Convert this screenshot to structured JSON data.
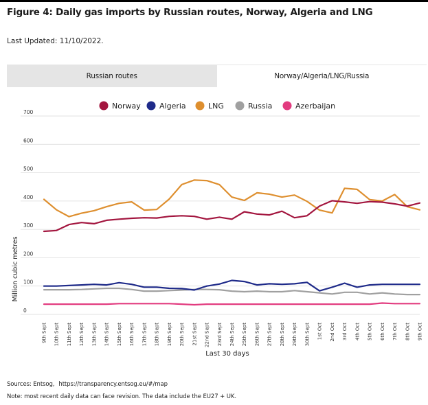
{
  "title": "Figure 4: Daily gas imports by Russian routes, Norway, Algeria and LNG",
  "last_updated": "Last Updated: 11/10/2022.",
  "tabs": [
    {
      "label": "Russian routes",
      "active": false
    },
    {
      "label": "Norway/Algeria/LNG/Russia",
      "active": true
    }
  ],
  "footer": {
    "sources_label": "Sources: Entsog,",
    "sources_url": "https://transparency.entsog.eu/#/map",
    "note": "Note: most recent daily data can face revision. The data include the EU27 + UK."
  },
  "chart_data": {
    "type": "line",
    "title": "",
    "xlabel": "Last 30 days",
    "ylabel": "Million cubic metres",
    "ylim": [
      0,
      700
    ],
    "yticks": [
      0,
      100,
      200,
      300,
      400,
      500,
      600,
      700
    ],
    "grid": true,
    "legend_position": "top-center",
    "categories": [
      "9th Sept",
      "10th Sept",
      "11th Sept",
      "12th Sept",
      "13th Sept",
      "14th Sept",
      "15th Sept",
      "16th Sept",
      "17th Sept",
      "18th Sept",
      "19th Sept",
      "20th Sept",
      "21st Sept",
      "22nd Sept",
      "23rd Sept",
      "24th Sept",
      "25th Sept",
      "26th Sept",
      "27th Sept",
      "28th Sept",
      "29th Sept",
      "30th Sept",
      "1st Oct",
      "2nd Oct",
      "3rd Oct",
      "4th Oct",
      "5th Oct",
      "6th Oct",
      "7th Oct",
      "8th Oct",
      "9th Oct"
    ],
    "series": [
      {
        "name": "Norway",
        "color": "#a3163f",
        "values": [
          293,
          296,
          317,
          324,
          320,
          332,
          336,
          339,
          341,
          340,
          346,
          348,
          346,
          336,
          343,
          336,
          362,
          354,
          351,
          364,
          341,
          348,
          382,
          401,
          397,
          392,
          398,
          396,
          390,
          382,
          393
        ]
      },
      {
        "name": "Algeria",
        "color": "#1f2b8a",
        "values": [
          100,
          100,
          102,
          104,
          106,
          104,
          112,
          106,
          96,
          96,
          92,
          91,
          86,
          100,
          107,
          120,
          116,
          104,
          108,
          106,
          108,
          113,
          83,
          96,
          110,
          96,
          104,
          106,
          106,
          106,
          106
        ]
      },
      {
        "name": "LNG",
        "color": "#de8f2f",
        "values": [
          406,
          369,
          345,
          357,
          366,
          380,
          392,
          397,
          368,
          370,
          407,
          458,
          474,
          472,
          458,
          414,
          402,
          429,
          424,
          414,
          421,
          399,
          368,
          358,
          445,
          441,
          405,
          400,
          423,
          380,
          369
        ]
      },
      {
        "name": "Russia",
        "color": "#a0a0a0",
        "values": [
          87,
          87,
          87,
          88,
          90,
          92,
          92,
          88,
          82,
          82,
          84,
          86,
          88,
          88,
          87,
          82,
          80,
          82,
          80,
          80,
          84,
          80,
          76,
          72,
          78,
          78,
          72,
          76,
          72,
          70,
          70
        ]
      },
      {
        "name": "Azerbaijan",
        "color": "#e23b7f",
        "values": [
          36,
          36,
          36,
          36,
          36,
          36,
          38,
          38,
          38,
          38,
          38,
          36,
          34,
          36,
          36,
          36,
          36,
          36,
          36,
          36,
          36,
          36,
          36,
          36,
          36,
          36,
          36,
          40,
          38,
          38,
          38
        ]
      }
    ]
  }
}
